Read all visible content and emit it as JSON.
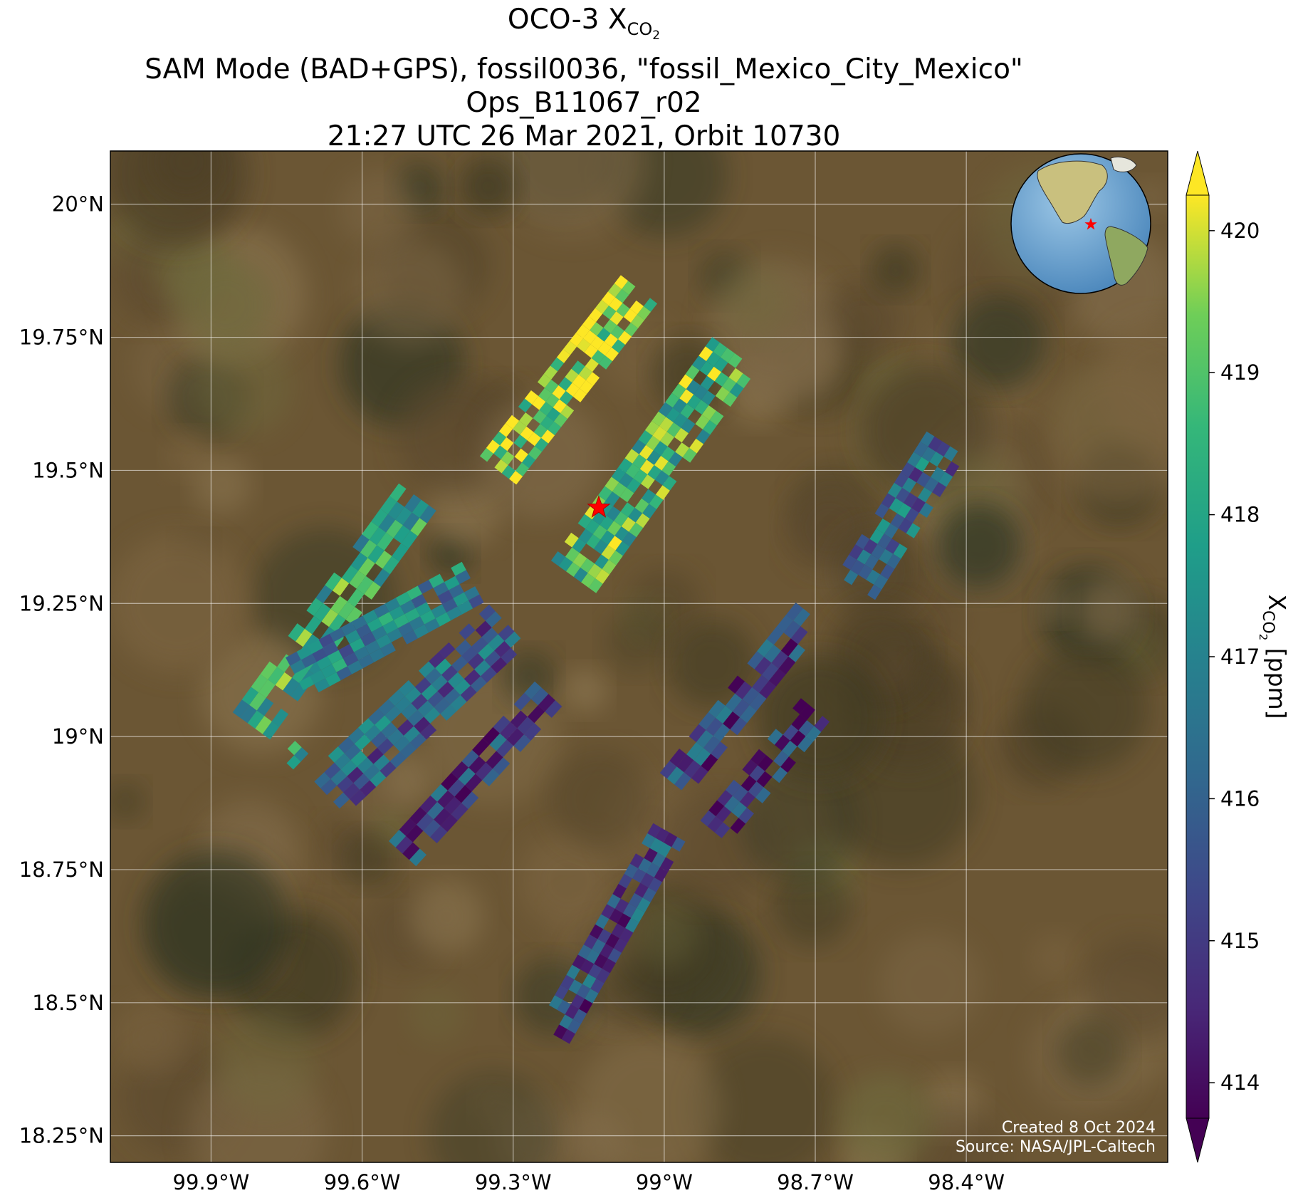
{
  "title": {
    "line1_prefix": "OCO-3 X",
    "line1_sub": "CO",
    "line1_subsub": "2",
    "line2": "SAM Mode (BAD+GPS), fossil0036, \"fossil_Mexico_City_Mexico\"",
    "line3": "Ops_B11067_r02",
    "line4": "21:27 UTC 26 Mar 2021, Orbit 10730"
  },
  "map": {
    "lon_range": [
      -100.1,
      -98.0
    ],
    "lat_range": [
      18.2,
      20.1
    ],
    "lon_ticks": [
      {
        "value": -99.9,
        "label": "99.9°W"
      },
      {
        "value": -99.6,
        "label": "99.6°W"
      },
      {
        "value": -99.3,
        "label": "99.3°W"
      },
      {
        "value": -99.0,
        "label": "99°W"
      },
      {
        "value": -98.7,
        "label": "98.7°W"
      },
      {
        "value": -98.4,
        "label": "98.4°W"
      }
    ],
    "lat_ticks": [
      {
        "value": 20.0,
        "label": "20°N"
      },
      {
        "value": 19.75,
        "label": "19.75°N"
      },
      {
        "value": 19.5,
        "label": "19.5°N"
      },
      {
        "value": 19.25,
        "label": "19.25°N"
      },
      {
        "value": 19.0,
        "label": "19°N"
      },
      {
        "value": 18.75,
        "label": "18.75°N"
      },
      {
        "value": 18.5,
        "label": "18.5°N"
      },
      {
        "value": 18.25,
        "label": "18.25°N"
      }
    ],
    "gridlines": true,
    "target_marker": {
      "name": "fossil_Mexico_City_Mexico",
      "lon": -99.13,
      "lat": 19.43,
      "icon": "star-icon",
      "color": "#ff0000"
    },
    "inset_globe": {
      "icon": "globe-icon",
      "position": "top-right",
      "marker_color": "#ff0000"
    },
    "credit_line1": "Created 8 Oct 2024",
    "credit_line2": "Source: NASA/JPL-Caltech"
  },
  "colorbar": {
    "colormap": "viridis",
    "range": [
      413.75,
      420.25
    ],
    "extend": "both",
    "ticks": [
      {
        "value": 414,
        "label": "414"
      },
      {
        "value": 415,
        "label": "415"
      },
      {
        "value": 416,
        "label": "416"
      },
      {
        "value": 417,
        "label": "417"
      },
      {
        "value": 418,
        "label": "418"
      },
      {
        "value": 419,
        "label": "419"
      },
      {
        "value": 420,
        "label": "420"
      }
    ],
    "label_prefix": "X",
    "label_sub": "CO",
    "label_subsub": "2",
    "label_suffix": " [ppm]"
  },
  "chart_data": {
    "type": "heatmap",
    "variable": "XCO2",
    "units": "ppm",
    "swaths": [
      {
        "start": [
          -99.82,
          19.02
        ],
        "end": [
          -99.49,
          19.45
        ],
        "mean": 418.2,
        "nx": 18,
        "ny": 5
      },
      {
        "start": [
          -99.73,
          19.11
        ],
        "end": [
          -99.38,
          19.29
        ],
        "mean": 417.0,
        "nx": 16,
        "ny": 5
      },
      {
        "start": [
          -99.67,
          18.89
        ],
        "end": [
          -99.31,
          19.21
        ],
        "mean": 416.0,
        "nx": 18,
        "ny": 6
      },
      {
        "start": [
          -99.52,
          18.78
        ],
        "end": [
          -99.23,
          19.08
        ],
        "mean": 415.2,
        "nx": 14,
        "ny": 4
      },
      {
        "start": [
          -99.33,
          19.5
        ],
        "end": [
          -99.05,
          19.84
        ],
        "mean": 419.6,
        "nx": 22,
        "ny": 5
      },
      {
        "start": [
          -99.18,
          19.3
        ],
        "end": [
          -98.86,
          19.72
        ],
        "mean": 418.6,
        "nx": 24,
        "ny": 6
      },
      {
        "start": [
          -98.62,
          19.28
        ],
        "end": [
          -98.44,
          19.55
        ],
        "mean": 416.2,
        "nx": 14,
        "ny": 5
      },
      {
        "start": [
          -98.98,
          18.91
        ],
        "end": [
          -98.71,
          19.23
        ],
        "mean": 415.3,
        "nx": 14,
        "ny": 4
      },
      {
        "start": [
          -98.9,
          18.82
        ],
        "end": [
          -98.7,
          19.05
        ],
        "mean": 414.8,
        "nx": 12,
        "ny": 4
      },
      {
        "start": [
          -99.22,
          18.44
        ],
        "end": [
          -98.99,
          18.82
        ],
        "mean": 415.4,
        "nx": 20,
        "ny": 4
      },
      {
        "start": [
          -99.75,
          18.95
        ],
        "end": [
          -99.72,
          18.98
        ],
        "mean": 417.3,
        "nx": 2,
        "ny": 2
      }
    ]
  }
}
